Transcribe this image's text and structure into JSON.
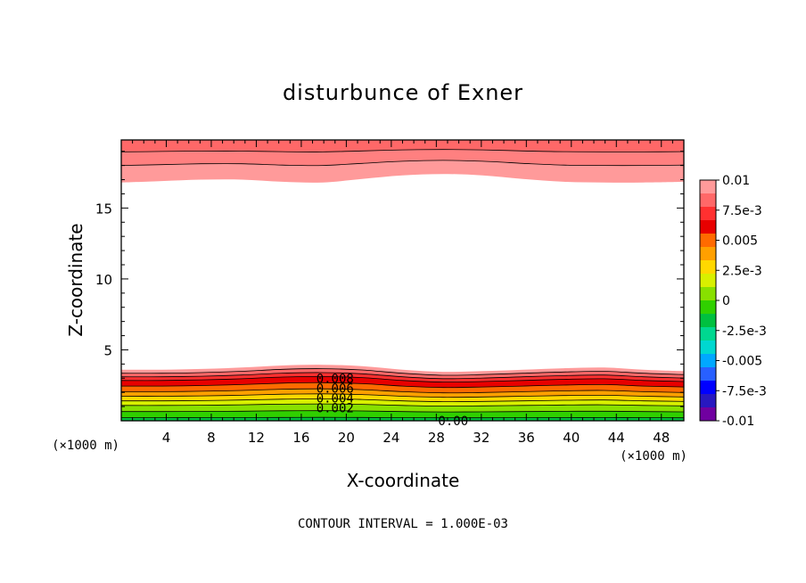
{
  "chart_data": {
    "type": "contour",
    "title": "disturbunce of Exner",
    "xlabel": "X-coordinate",
    "ylabel": "Z-coordinate",
    "x_unit_label": "(×1000 m)",
    "y_unit_label": "(×1000 m)",
    "footer": "CONTOUR INTERVAL = 1.000E-03",
    "xlim": [
      0,
      50
    ],
    "ylim": [
      0,
      19.8
    ],
    "xticks": [
      4,
      8,
      12,
      16,
      20,
      24,
      28,
      32,
      36,
      40,
      44,
      48
    ],
    "yticks": [
      5,
      10,
      15
    ],
    "contour_interval": 0.001,
    "contour_labels": [
      {
        "text": "0.008",
        "x": 19.0,
        "y": 3.0
      },
      {
        "text": "0.006",
        "x": 19.0,
        "y": 2.3
      },
      {
        "text": "0.004",
        "x": 19.0,
        "y": 1.6
      },
      {
        "text": "0.002",
        "x": 19.0,
        "y": 0.9
      },
      {
        "text": "0.00",
        "x": 29.5,
        "y": 0.0
      }
    ],
    "colorbar": {
      "tick_labels": [
        "0.01",
        "7.5e-3",
        "0.005",
        "2.5e-3",
        "0",
        "-2.5e-3",
        "-0.005",
        "-7.5e-3",
        "-0.01"
      ],
      "colors": [
        "#ff9a9a",
        "#ff6868",
        "#ff3030",
        "#e80000",
        "#ff6a00",
        "#ffa000",
        "#ffd800",
        "#d8f000",
        "#88e000",
        "#30d000",
        "#00c040",
        "#00d890",
        "#00d8d0",
        "#00a8ff",
        "#2860ff",
        "#0000ff",
        "#2818c0",
        "#7000a0"
      ]
    },
    "bottom_band": {
      "base_z": [
        3.6,
        3.6,
        3.65,
        3.75,
        3.9,
        3.95,
        3.85,
        3.6,
        3.45,
        3.5,
        3.6,
        3.7,
        3.75,
        3.6,
        3.5
      ],
      "min_z": 0.0,
      "bands": [
        {
          "color": "#ff9a9a",
          "frac": 1.0
        },
        {
          "color": "#ff6868",
          "frac": 0.93
        },
        {
          "color": "#ff3030",
          "frac": 0.86
        },
        {
          "color": "#e80000",
          "frac": 0.79
        },
        {
          "color": "#ff6a00",
          "frac": 0.68
        },
        {
          "color": "#ffa000",
          "frac": 0.57
        },
        {
          "color": "#ffd800",
          "frac": 0.48
        },
        {
          "color": "#d8f000",
          "frac": 0.39
        },
        {
          "color": "#88e000",
          "frac": 0.3
        },
        {
          "color": "#30d000",
          "frac": 0.18
        },
        {
          "color": "#00c040",
          "frac": 0.06
        }
      ]
    },
    "top_band": {
      "base_z": [
        16.8,
        16.9,
        17.0,
        17.0,
        16.85,
        16.8,
        17.05,
        17.3,
        17.4,
        17.3,
        17.05,
        16.85,
        16.8,
        16.8,
        16.85
      ],
      "bands": [
        {
          "color": "#ff9a9a",
          "frac": 0.0
        },
        {
          "color": "#ff8080",
          "frac": 0.4
        },
        {
          "color": "#ff6868",
          "frac": 0.72
        }
      ]
    },
    "contour_x": [
      0,
      3.6,
      7.1,
      10.7,
      14.3,
      17.9,
      21.4,
      25.0,
      28.6,
      32.1,
      35.7,
      39.3,
      42.9,
      46.4,
      50
    ]
  }
}
